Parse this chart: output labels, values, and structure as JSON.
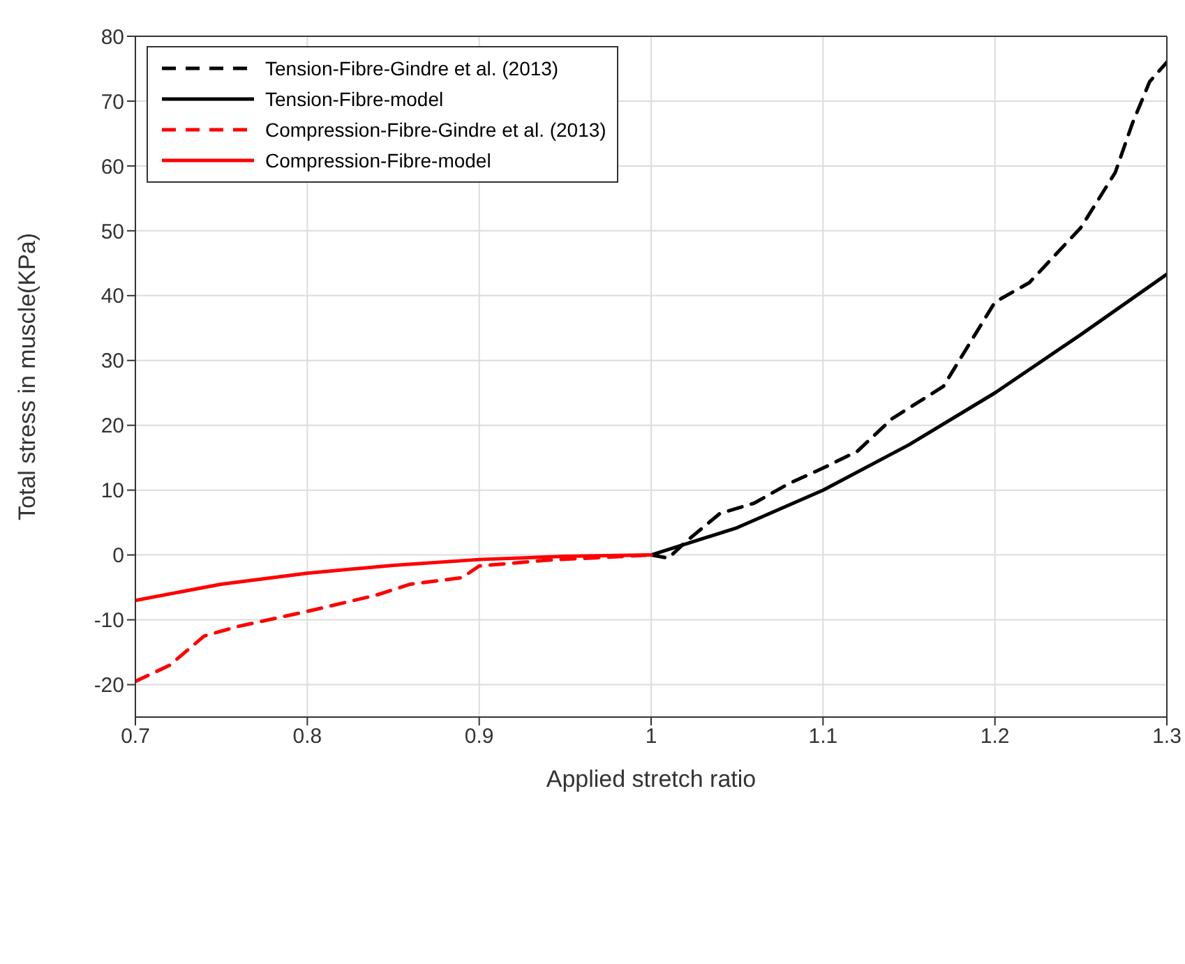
{
  "chart_data": {
    "type": "line",
    "xlabel": "Applied stretch ratio",
    "ylabel": "Total stress in muscle(KPa)",
    "xlim": [
      0.7,
      1.3
    ],
    "xticks": [
      0.7,
      0.8,
      0.9,
      1,
      1.1,
      1.2,
      1.3
    ],
    "ylim": [
      -25,
      80
    ],
    "yticks": [
      -20,
      -10,
      0,
      10,
      20,
      30,
      40,
      50,
      60,
      70,
      80
    ],
    "grid": true,
    "legend": "top left",
    "marker": "none",
    "series": [
      {
        "name": "Tension-Fibre-Gindre et al. (2013)",
        "color": "#000000",
        "line_style": "dashed",
        "x": [
          1.0,
          1.01,
          1.02,
          1.04,
          1.06,
          1.08,
          1.1,
          1.12,
          1.14,
          1.17,
          1.2,
          1.22,
          1.25,
          1.27,
          1.28,
          1.29,
          1.3
        ],
        "values": [
          0,
          -0.5,
          2,
          6.4,
          8,
          11,
          13.4,
          16,
          21,
          26,
          39,
          42,
          50.5,
          59,
          66.6,
          73,
          76
        ]
      },
      {
        "name": "Tension-Fibre-model",
        "color": "#000000",
        "line_style": "solid",
        "x": [
          1.0,
          1.05,
          1.1,
          1.15,
          1.2,
          1.25,
          1.3
        ],
        "values": [
          0,
          4.2,
          10,
          17,
          25,
          34,
          43.3
        ]
      },
      {
        "name": "Compression-Fibre-Gindre et al. (2013)",
        "color": "#ff0000",
        "line_style": "dashed",
        "x": [
          0.7,
          0.72,
          0.74,
          0.76,
          0.8,
          0.84,
          0.86,
          0.89,
          0.9,
          0.94,
          1.0
        ],
        "values": [
          -19.5,
          -17,
          -12.5,
          -11,
          -8.7,
          -6.2,
          -4.5,
          -3.5,
          -1.7,
          -0.8,
          0
        ]
      },
      {
        "name": "Compression-Fibre-model",
        "color": "#ff0000",
        "line_style": "solid",
        "x": [
          0.7,
          0.75,
          0.8,
          0.85,
          0.9,
          0.95,
          1.0
        ],
        "values": [
          -7,
          -4.5,
          -2.8,
          -1.6,
          -0.7,
          -0.2,
          0
        ]
      }
    ]
  }
}
